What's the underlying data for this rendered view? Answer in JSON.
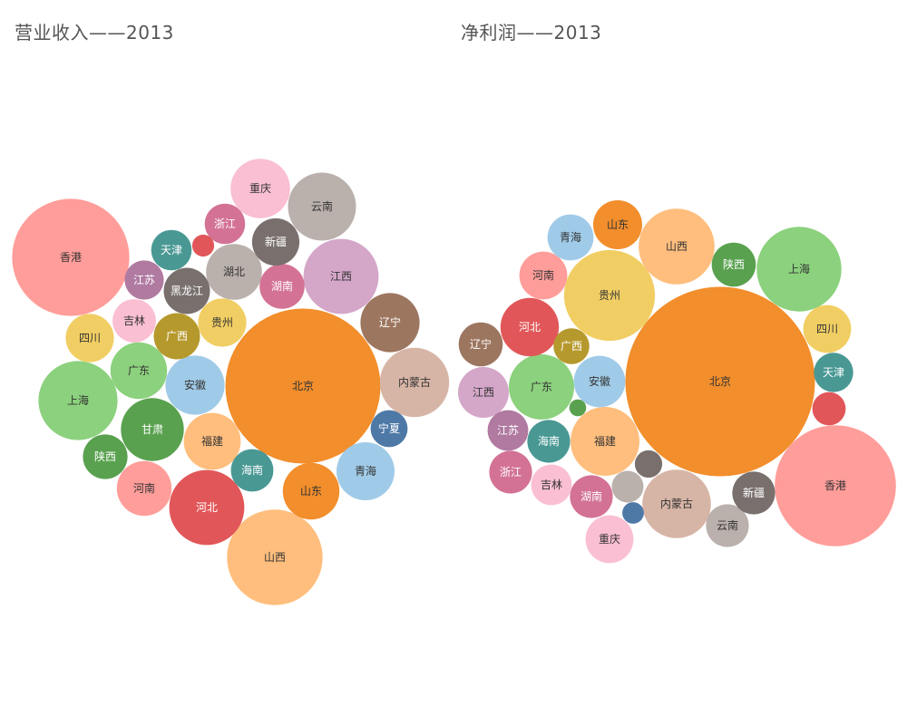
{
  "chart_data": [
    {
      "type": "bubble",
      "title": "营业收入——2013",
      "items": [
        {
          "name": "北京",
          "value": 100,
          "color": "#F28E2B",
          "label_color": "#333333"
        },
        {
          "name": "香港",
          "value": 57,
          "color": "#FF9D9A",
          "label_color": "#333333"
        },
        {
          "name": "山西",
          "value": 38,
          "color": "#FFBE7D",
          "label_color": "#333333"
        },
        {
          "name": "上海",
          "value": 26,
          "color": "#8CD17D",
          "label_color": "#333333"
        },
        {
          "name": "内蒙古",
          "value": 20,
          "color": "#D7B5A6",
          "label_color": "#333333"
        },
        {
          "name": "河北",
          "value": 23.5,
          "color": "#E15759",
          "label_color": "#ffffff"
        },
        {
          "name": "江西",
          "value": 23.5,
          "color": "#D4A6C8",
          "label_color": "#333333"
        },
        {
          "name": "青海",
          "value": 14,
          "color": "#A0CBE8",
          "label_color": "#333333"
        },
        {
          "name": "安徽",
          "value": 14.5,
          "color": "#A0CBE8",
          "label_color": "#333333"
        },
        {
          "name": "云南",
          "value": 19.2,
          "color": "#BAB0AC",
          "label_color": "#333333"
        },
        {
          "name": "辽宁",
          "value": 14.5,
          "color": "#9D7660",
          "label_color": "#ffffff"
        },
        {
          "name": "甘肃",
          "value": 16.5,
          "color": "#59A14F",
          "label_color": "#ffffff"
        },
        {
          "name": "湖北",
          "value": 13,
          "color": "#BAB0AC",
          "label_color": "#333333"
        },
        {
          "name": "重庆",
          "value": 14.7,
          "color": "#FABFD2",
          "label_color": "#333333"
        },
        {
          "name": "福建",
          "value": 13.5,
          "color": "#FFBE7D",
          "label_color": "#333333"
        },
        {
          "name": "河南",
          "value": 12.5,
          "color": "#FF9D9A",
          "label_color": "#333333"
        },
        {
          "name": "山东",
          "value": 13.3,
          "color": "#F28E2B",
          "label_color": "#333333"
        },
        {
          "name": "广东",
          "value": 13.3,
          "color": "#8CD17D",
          "label_color": "#333333"
        },
        {
          "name": "四川",
          "value": 9.7,
          "color": "#F1CE63",
          "label_color": "#333333"
        },
        {
          "name": "陕西",
          "value": 8.3,
          "color": "#59A14F",
          "label_color": "#ffffff"
        },
        {
          "name": "吉林",
          "value": 7.8,
          "color": "#FABFD2",
          "label_color": "#333333"
        },
        {
          "name": "江苏",
          "value": 6.4,
          "color": "#B07AA1",
          "label_color": "#ffffff"
        },
        {
          "name": "贵州",
          "value": 9.7,
          "color": "#F1CE63",
          "label_color": "#333333"
        },
        {
          "name": "广西",
          "value": 8.9,
          "color": "#B6992D",
          "label_color": "#ffffff"
        },
        {
          "name": "黑龙江",
          "value": 8.9,
          "color": "#79706E",
          "label_color": "#ffffff"
        },
        {
          "name": "湖南",
          "value": 8.4,
          "color": "#D37295",
          "label_color": "#ffffff"
        },
        {
          "name": "新疆",
          "value": 9.3,
          "color": "#79706E",
          "label_color": "#ffffff"
        },
        {
          "name": "海南",
          "value": 7.5,
          "color": "#499894",
          "label_color": "#ffffff"
        },
        {
          "name": "浙江",
          "value": 6.8,
          "color": "#D37295",
          "label_color": "#ffffff"
        },
        {
          "name": "天津",
          "value": 6.8,
          "color": "#499894",
          "label_color": "#ffffff"
        },
        {
          "name": "宁夏",
          "value": 5.7,
          "color": "#4E79A7",
          "label_color": "#ffffff"
        },
        {
          "name": "",
          "value": 2,
          "color": "#E15759",
          "label_color": "#ffffff"
        }
      ]
    },
    {
      "type": "bubble",
      "title": "净利润——2013",
      "items": [
        {
          "name": "北京",
          "value": 100,
          "color": "#F28E2B",
          "label_color": "#333333"
        },
        {
          "name": "香港",
          "value": 40.9,
          "color": "#FF9D9A",
          "label_color": "#333333"
        },
        {
          "name": "贵州",
          "value": 23,
          "color": "#F1CE63",
          "label_color": "#333333"
        },
        {
          "name": "上海",
          "value": 20,
          "color": "#8CD17D",
          "label_color": "#333333"
        },
        {
          "name": "山西",
          "value": 16,
          "color": "#FFBE7D",
          "label_color": "#333333"
        },
        {
          "name": "福建",
          "value": 13.2,
          "color": "#FFBE7D",
          "label_color": "#333333"
        },
        {
          "name": "内蒙古",
          "value": 13.1,
          "color": "#D7B5A6",
          "label_color": "#333333"
        },
        {
          "name": "广东",
          "value": 11.9,
          "color": "#8CD17D",
          "label_color": "#333333"
        },
        {
          "name": "河北",
          "value": 9.5,
          "color": "#E15759",
          "label_color": "#ffffff"
        },
        {
          "name": "安徽",
          "value": 7.4,
          "color": "#A0CBE8",
          "label_color": "#333333"
        },
        {
          "name": "江西",
          "value": 7.2,
          "color": "#D4A6C8",
          "label_color": "#333333"
        },
        {
          "name": "河南",
          "value": 6.4,
          "color": "#FF9D9A",
          "label_color": "#333333"
        },
        {
          "name": "四川",
          "value": 6.4,
          "color": "#F1CE63",
          "label_color": "#333333"
        },
        {
          "name": "青海",
          "value": 5.9,
          "color": "#A0CBE8",
          "label_color": "#333333"
        },
        {
          "name": "山东",
          "value": 6.7,
          "color": "#F28E2B",
          "label_color": "#333333"
        },
        {
          "name": "陕西",
          "value": 5.4,
          "color": "#59A14F",
          "label_color": "#ffffff"
        },
        {
          "name": "辽宁",
          "value": 5.4,
          "color": "#9D7660",
          "label_color": "#ffffff"
        },
        {
          "name": "海南",
          "value": 5.1,
          "color": "#499894",
          "label_color": "#ffffff"
        },
        {
          "name": "湖南",
          "value": 5.1,
          "color": "#D37295",
          "label_color": "#ffffff"
        },
        {
          "name": "云南",
          "value": 5.1,
          "color": "#BAB0AC",
          "label_color": "#333333"
        },
        {
          "name": "重庆",
          "value": 6.4,
          "color": "#FABFD2",
          "label_color": "#333333"
        },
        {
          "name": "江苏",
          "value": 4.6,
          "color": "#B07AA1",
          "label_color": "#ffffff"
        },
        {
          "name": "浙江",
          "value": 5.1,
          "color": "#D37295",
          "label_color": "#ffffff"
        },
        {
          "name": "吉林",
          "value": 4.6,
          "color": "#FABFD2",
          "label_color": "#333333"
        },
        {
          "name": "新疆",
          "value": 5.1,
          "color": "#79706E",
          "label_color": "#ffffff"
        },
        {
          "name": "天津",
          "value": 4.3,
          "color": "#499894",
          "label_color": "#ffffff"
        },
        {
          "name": "广西",
          "value": 3.6,
          "color": "#B6992D",
          "label_color": "#ffffff"
        },
        {
          "name": "",
          "value": 3.1,
          "color": "#E15759",
          "label_color": "#ffffff"
        },
        {
          "name": "",
          "value": 2.8,
          "color": "#BAB0AC",
          "label_color": "#333333"
        },
        {
          "name": "",
          "value": 2.1,
          "color": "#79706E",
          "label_color": "#ffffff"
        },
        {
          "name": "",
          "value": 1.3,
          "color": "#4E79A7",
          "label_color": "#ffffff"
        },
        {
          "name": "",
          "value": 0.8,
          "color": "#59A14F",
          "label_color": "#ffffff"
        }
      ]
    }
  ]
}
